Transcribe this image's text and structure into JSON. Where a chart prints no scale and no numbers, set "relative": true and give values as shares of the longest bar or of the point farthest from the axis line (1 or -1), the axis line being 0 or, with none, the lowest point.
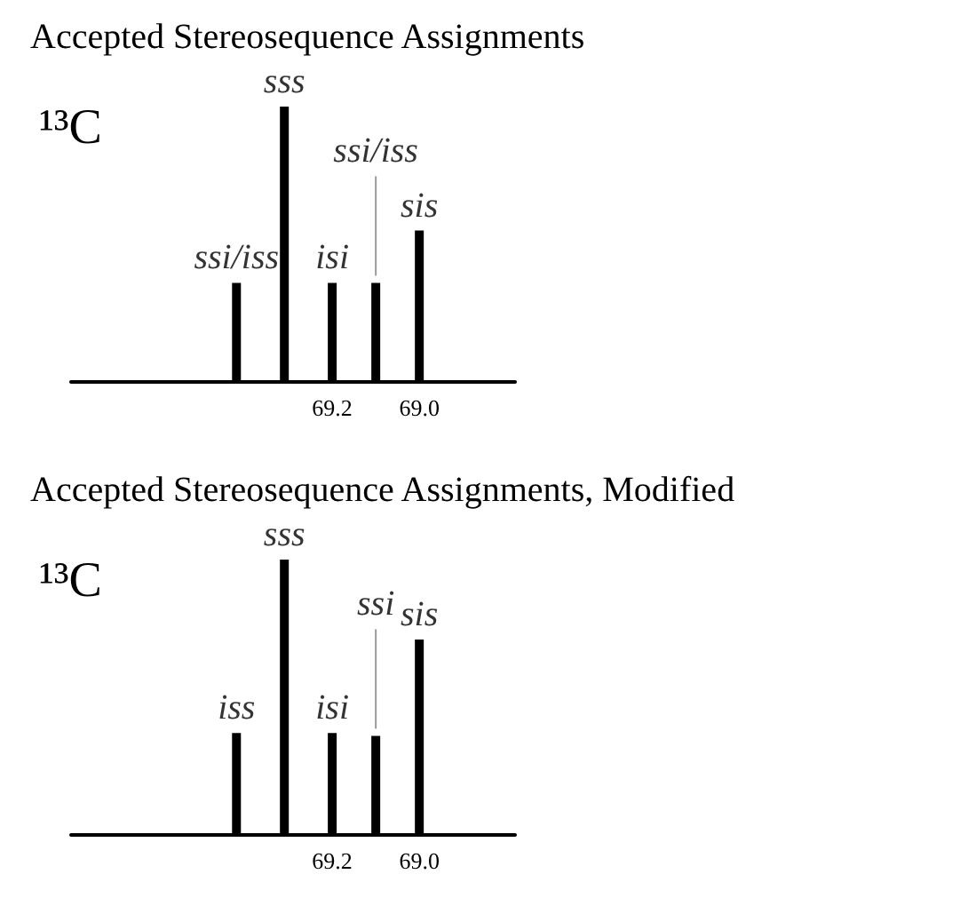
{
  "chart_data": [
    {
      "type": "bar",
      "title": "Accepted Stereosequence Assignments",
      "relative": true,
      "x": [
        69.42,
        69.31,
        69.2,
        69.1,
        69.0
      ],
      "values": [
        0.36,
        1,
        0.36,
        0.36,
        0.55
      ],
      "color": "#000000",
      "xlim": [
        69.8,
        68.78
      ],
      "xticks": [
        69.2,
        {
          "value": 69,
          "label": "69.0"
        }
      ],
      "grid": false,
      "annotations": [
        "¹³C",
        {
          "text": "ssi/iss",
          "x": 69.42,
          "y": 0.36
        },
        {
          "text": "sss",
          "x": 69.31,
          "y": 1
        },
        {
          "text": "isi",
          "x": 69.2,
          "y": 0.36
        },
        {
          "text": "ssi/iss",
          "x": 69.1,
          "y": 0.36
        },
        {
          "text": "sis",
          "x": 69.0,
          "y": 0.55
        }
      ]
    },
    {
      "type": "bar",
      "title": "Accepted Stereosequence Assignments, Modified",
      "relative": true,
      "x": [
        69.42,
        69.31,
        69.2,
        69.1,
        69.0
      ],
      "values": [
        0.37,
        1,
        0.37,
        0.36,
        0.71
      ],
      "color": "#000000",
      "xlim": [
        69.8,
        68.78
      ],
      "xticks": [
        69.2,
        {
          "value": 69,
          "label": "69.0"
        }
      ],
      "grid": false,
      "annotations": [
        "¹³C",
        {
          "text": "iss",
          "x": 69.42,
          "y": 0.37
        },
        {
          "text": "sss",
          "x": 69.31,
          "y": 1
        },
        {
          "text": "isi",
          "x": 69.2,
          "y": 0.37
        },
        {
          "text": "ssi",
          "x": 69.1,
          "y": 0.36
        },
        {
          "text": "sis",
          "x": 69.0,
          "y": 0.71
        }
      ]
    }
  ]
}
